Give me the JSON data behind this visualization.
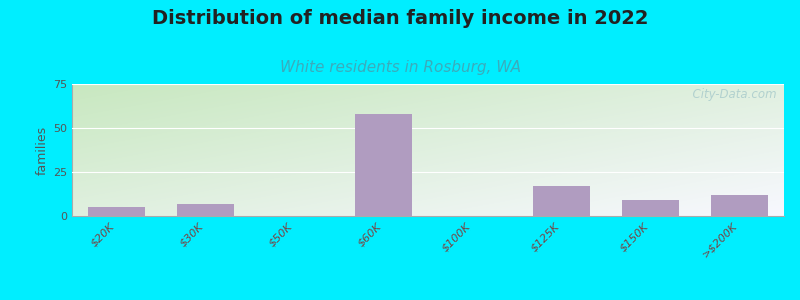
{
  "title": "Distribution of median family income in 2022",
  "subtitle": "White residents in Rosburg, WA",
  "categories": [
    "$20K",
    "$30K",
    "$50K",
    "$60K",
    "$100K",
    "$125K",
    "$150K",
    ">$200K"
  ],
  "values": [
    5,
    7,
    0,
    58,
    0,
    17,
    9,
    12
  ],
  "bar_color": "#b09cc0",
  "ylim": [
    0,
    75
  ],
  "yticks": [
    0,
    25,
    50,
    75
  ],
  "ylabel": "families",
  "background_outer": "#00eeff",
  "grad_top_left": "#c8e8c0",
  "grad_bottom_right": "#f8f8ff",
  "title_fontsize": 14,
  "title_color": "#222222",
  "subtitle_fontsize": 11,
  "subtitle_color": "#3aacbc",
  "tick_color": "#555555",
  "watermark": "  City-Data.com",
  "watermark_color": "#aacccc",
  "grid_color": "#dddddd"
}
